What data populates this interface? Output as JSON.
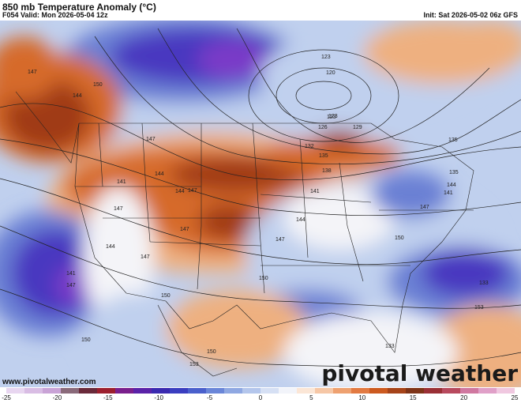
{
  "header": {
    "title": "850 mb Temperature Anomaly (°C)",
    "valid": "F054 Valid: Mon 2026-05-04 12z",
    "init": "Init: Sat 2026-05-02 06z GFS"
  },
  "footer": {
    "website": "www.pivotalweather.com",
    "brand": "pivotal weather"
  },
  "colorbar": {
    "ticks": [
      "-25",
      "-20",
      "-15",
      "-10",
      "-5",
      "0",
      "5",
      "10",
      "15",
      "20",
      "25"
    ],
    "colors": [
      "#e8d6f0",
      "#d9bde4",
      "#c9a3d6",
      "#8a6a7a",
      "#6a2a3a",
      "#9c1f2e",
      "#7a1f8c",
      "#5a22a8",
      "#3a2ab0",
      "#3a3ec0",
      "#4a60cc",
      "#6a86d8",
      "#8fa8e2",
      "#b4c6ec",
      "#d6e0f4",
      "#f2f4fa",
      "#fbe6d6",
      "#f6c7a6",
      "#eea170",
      "#e27a42",
      "#cc5a20",
      "#a6441a",
      "#7e3418",
      "#9a3036",
      "#b84a5e",
      "#d078a0",
      "#e0a0c8",
      "#f0c8e0"
    ]
  },
  "map": {
    "colors": {
      "deep_warm": "#a03a14",
      "warm": "#d66a2a",
      "light_warm": "#eeb080",
      "neutral": "#f4f4f8",
      "light_cold": "#c0d0ee",
      "cold": "#6a80d4",
      "deep_cold": "#4a38c0",
      "violet": "#7a3ac8"
    },
    "height_labels": [
      "147",
      "150",
      "144",
      "147",
      "141",
      "144",
      "147",
      "147",
      "144",
      "147",
      "147",
      "150",
      "144",
      "141",
      "138",
      "135",
      "132",
      "126",
      "123",
      "123",
      "120",
      "123",
      "129",
      "135",
      "135",
      "141",
      "144",
      "147",
      "150",
      "150",
      "147",
      "150",
      "150",
      "153",
      "153",
      "133",
      "133",
      "141",
      "144",
      "147"
    ]
  }
}
